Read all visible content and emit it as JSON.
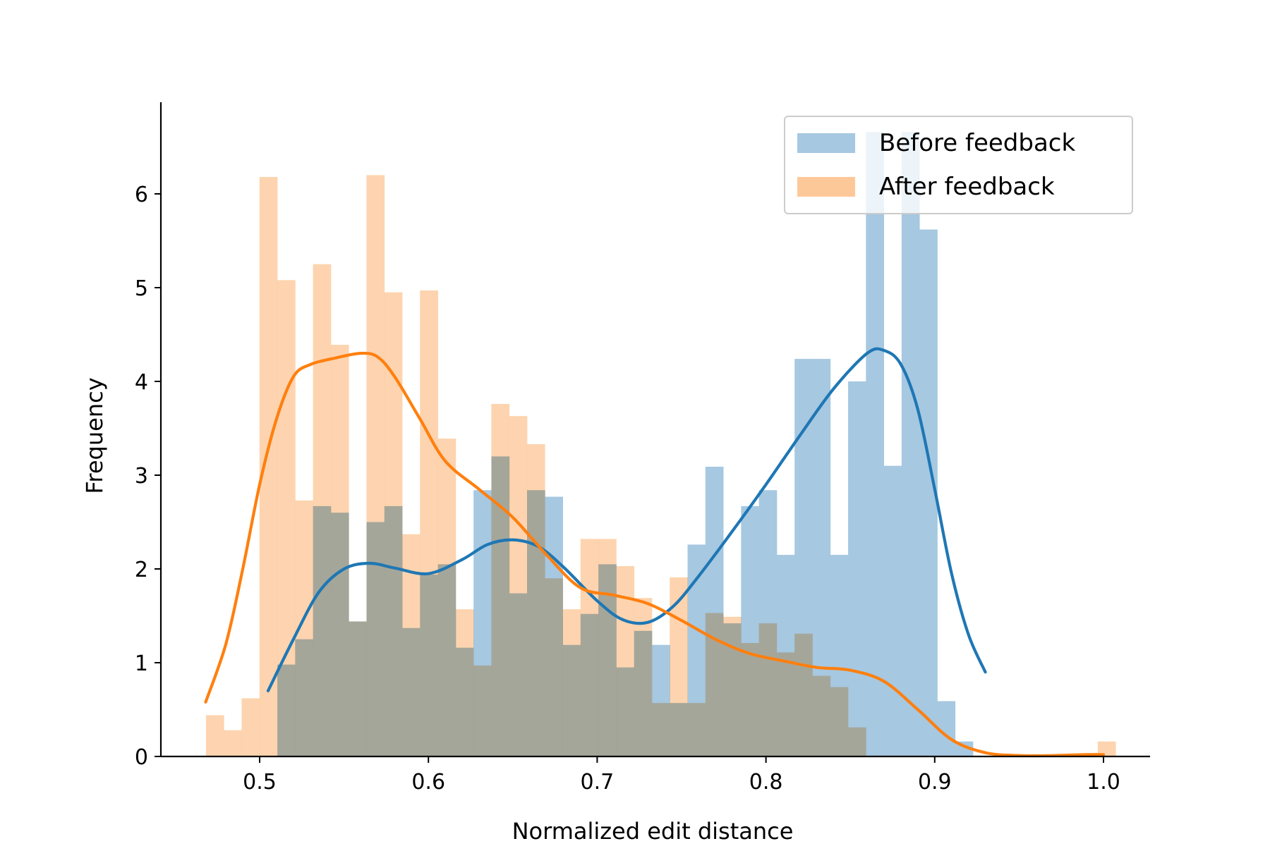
{
  "chart_data": {
    "type": "histogram",
    "title": "",
    "xlabel": "Normalized edit distance",
    "ylabel": "Frequency",
    "xlim": [
      0.444,
      1.026
    ],
    "ylim": [
      0,
      7
    ],
    "xticks": [
      "0.5",
      "0.6",
      "0.7",
      "0.8",
      "0.9",
      "1.0"
    ],
    "yticks": [
      "0",
      "1",
      "2",
      "3",
      "4",
      "5",
      "6"
    ],
    "grid": false,
    "legend_position": "top-right",
    "series": [
      {
        "name": "Before feedback",
        "color": "#1f77b4",
        "bar_color": "#a6c8e1",
        "bins_start": 0.5105,
        "bin_width": 0.010568,
        "values": [
          0.98,
          1.25,
          2.67,
          2.6,
          1.44,
          2.5,
          2.67,
          1.37,
          1.94,
          2.05,
          1.16,
          2.84,
          3.2,
          1.74,
          2.84,
          2.77,
          1.19,
          1.52,
          2.05,
          0.95,
          1.34,
          1.19,
          0.57,
          2.26,
          3.09,
          1.42,
          2.67,
          2.84,
          2.15,
          4.24,
          4.24,
          2.15,
          4.0,
          6.66,
          3.1,
          6.66,
          5.62,
          0.59,
          0.16
        ],
        "kde_x": [
          0.505,
          0.52,
          0.535,
          0.55,
          0.565,
          0.58,
          0.6,
          0.62,
          0.635,
          0.65,
          0.665,
          0.68,
          0.7,
          0.715,
          0.73,
          0.745,
          0.76,
          0.78,
          0.8,
          0.82,
          0.84,
          0.86,
          0.87,
          0.88,
          0.89,
          0.9,
          0.91,
          0.92,
          0.93
        ],
        "kde_y": [
          0.7,
          1.25,
          1.75,
          2.0,
          2.06,
          2.01,
          1.95,
          2.1,
          2.26,
          2.31,
          2.24,
          2.02,
          1.66,
          1.46,
          1.43,
          1.6,
          1.92,
          2.4,
          2.9,
          3.42,
          3.92,
          4.3,
          4.33,
          4.18,
          3.7,
          2.85,
          1.95,
          1.3,
          0.9
        ]
      },
      {
        "name": "After feedback",
        "color": "#ff7f0e",
        "bar_color": "#fdc898",
        "bins_start": 0.4682,
        "bin_width": 0.010568,
        "values": [
          0.44,
          0.28,
          0.62,
          6.18,
          5.08,
          2.73,
          5.25,
          4.39,
          1.44,
          6.2,
          4.95,
          2.37,
          4.97,
          3.39,
          1.57,
          0.97,
          3.76,
          3.63,
          3.33,
          1.9,
          1.57,
          2.32,
          2.32,
          2.03,
          1.69,
          0.57,
          1.91,
          0.57,
          1.53,
          1.49,
          1.21,
          1.42,
          1.11,
          1.31,
          0.86,
          0.74,
          0.31,
          0.0,
          0.0,
          0.0,
          0.0,
          0.0,
          0.0,
          0.0,
          0.0,
          0.0,
          0.0,
          0.0,
          0.0,
          0.0,
          0.16
        ],
        "kde_x": [
          0.468,
          0.48,
          0.49,
          0.5,
          0.51,
          0.52,
          0.53,
          0.545,
          0.56,
          0.57,
          0.58,
          0.595,
          0.61,
          0.63,
          0.65,
          0.67,
          0.69,
          0.71,
          0.73,
          0.75,
          0.77,
          0.79,
          0.81,
          0.83,
          0.85,
          0.87,
          0.89,
          0.91,
          0.93,
          0.95,
          0.97,
          0.99,
          1.0
        ],
        "kde_y": [
          0.58,
          1.2,
          2.0,
          2.9,
          3.6,
          4.05,
          4.18,
          4.25,
          4.3,
          4.26,
          4.05,
          3.6,
          3.15,
          2.85,
          2.55,
          2.15,
          1.8,
          1.72,
          1.63,
          1.45,
          1.25,
          1.1,
          1.02,
          0.95,
          0.92,
          0.8,
          0.5,
          0.18,
          0.04,
          0.01,
          0.01,
          0.02,
          0.02
        ]
      }
    ]
  }
}
